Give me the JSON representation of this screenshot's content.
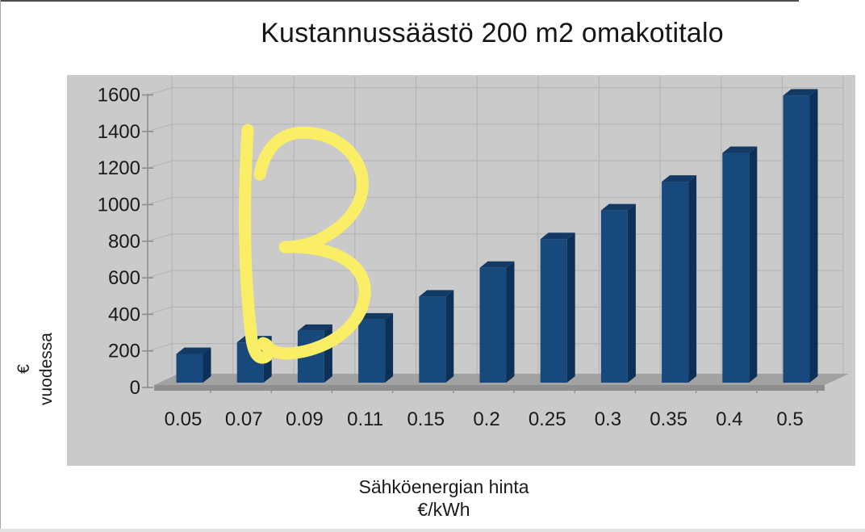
{
  "chart_data": {
    "type": "bar",
    "style_3d": true,
    "title": "Kustannussäästö 200 m2 omakotitalo",
    "categories": [
      "0.05",
      "0.07",
      "0.09",
      "0.11",
      "0.15",
      "0.2",
      "0.25",
      "0.3",
      "0.35",
      "0.4",
      "0.5"
    ],
    "values": [
      157,
      220,
      283,
      345,
      471,
      628,
      785,
      942,
      1099,
      1256,
      1570
    ],
    "xlabel_lines": [
      "Sähköenergian hinta",
      "€/kWh"
    ],
    "ylabel_lines": [
      "€",
      "vuodessa"
    ],
    "ylim": [
      0,
      1600
    ],
    "yticks": [
      0,
      200,
      400,
      600,
      800,
      1000,
      1200,
      1400,
      1600
    ],
    "grid": true,
    "legend": false,
    "colors": {
      "bar_front": "#17497d",
      "bar_side": "#0d3156",
      "bar_top": "#123a64",
      "panel_bg": "#cbcaca",
      "floor_top": "#a3a2a2",
      "floor_front": "#8f8e8e",
      "gridline": "#b7b6b6",
      "axis": "#8e8e8e",
      "text": "#1a1a1a"
    }
  },
  "annotation": {
    "text": "B",
    "style": "handwritten-marker",
    "color": "#f9ee66"
  }
}
